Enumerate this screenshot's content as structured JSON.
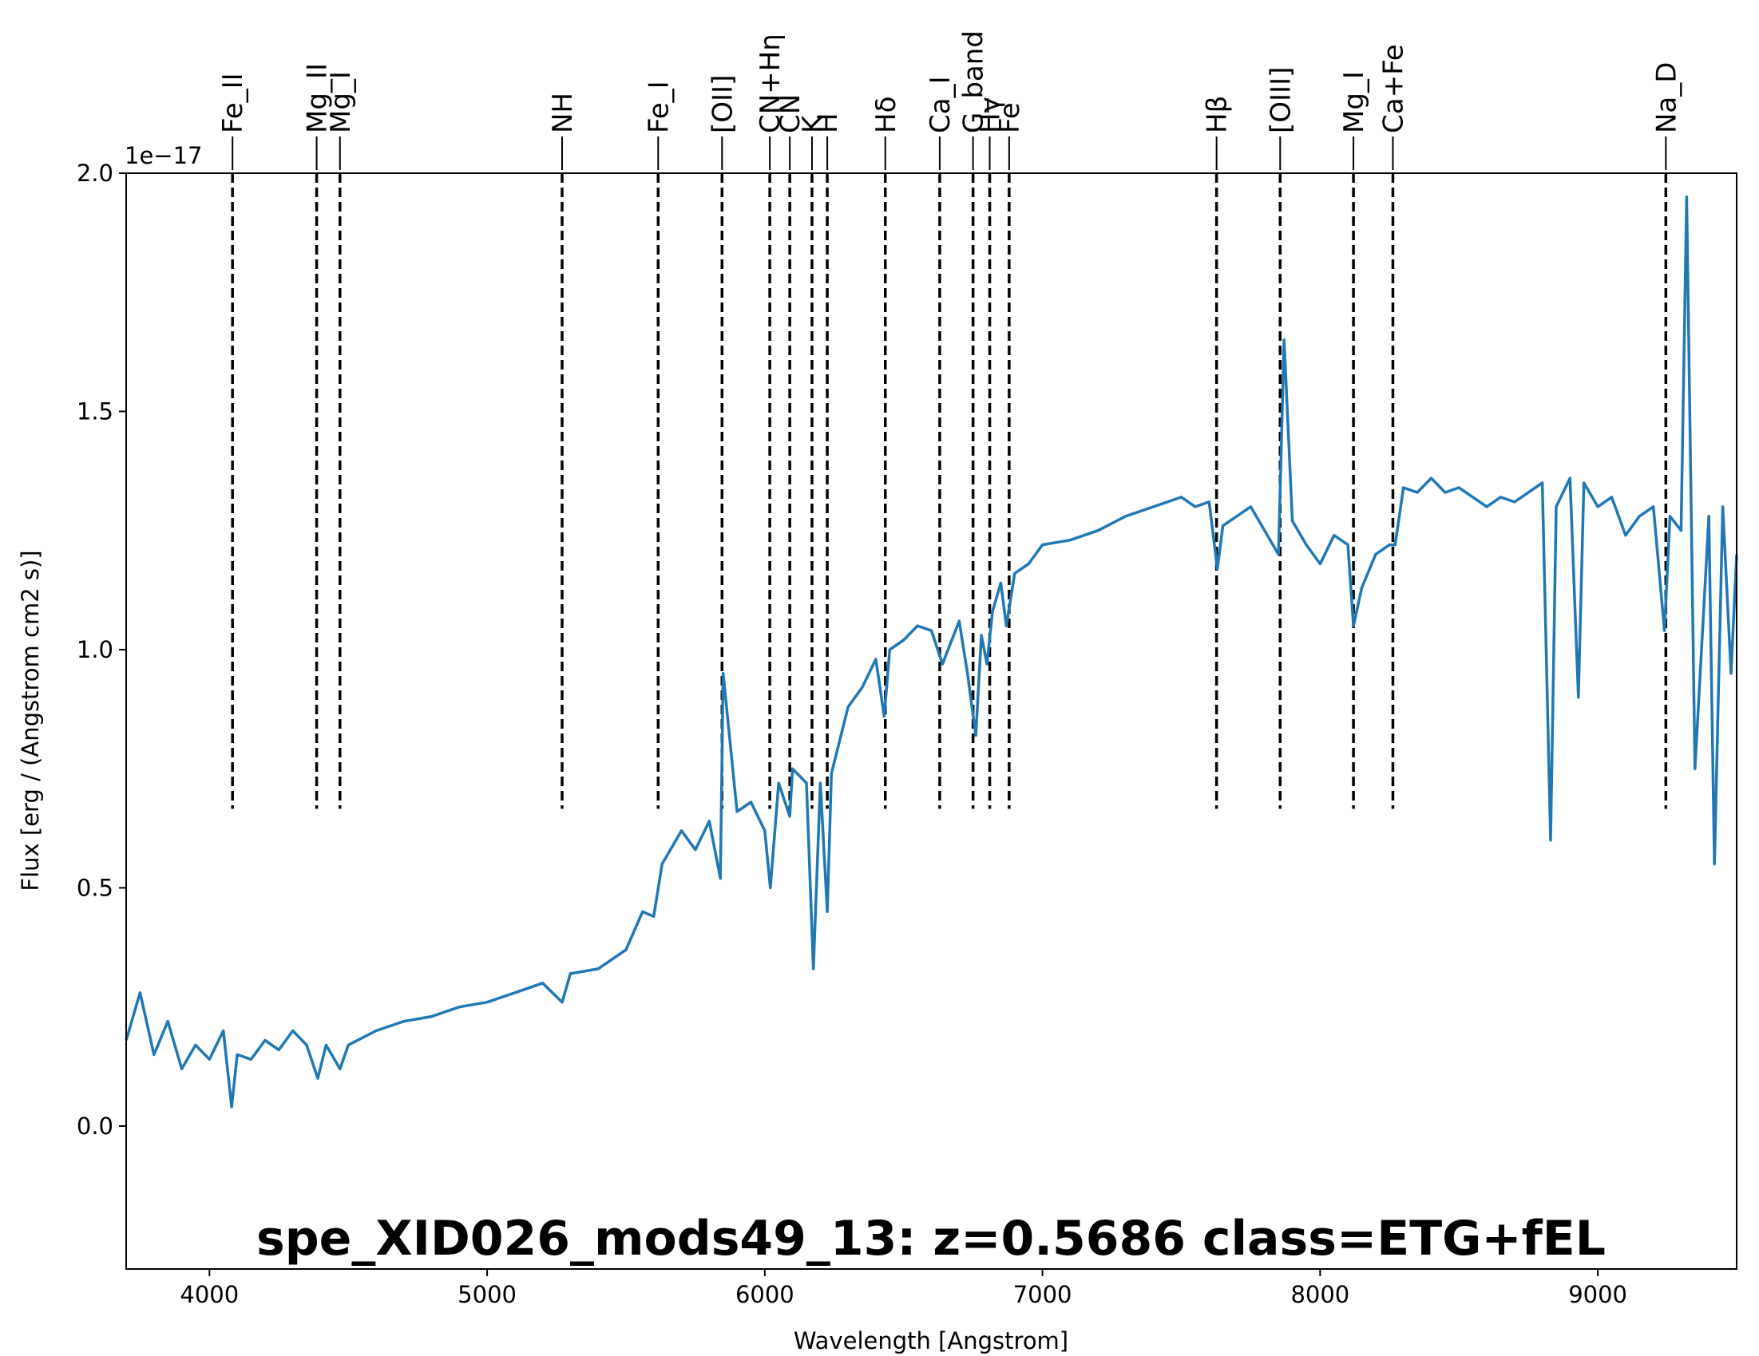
{
  "chart_data": {
    "type": "line",
    "xlabel": "Wavelength [Angstrom]",
    "ylabel": "Flux [erg / (Angstrom cm2 s)]",
    "y_offset_text": "1e−17",
    "xlim": [
      3700,
      9500
    ],
    "ylim": [
      -0.3,
      2.0
    ],
    "x_ticks": [
      4000,
      5000,
      6000,
      7000,
      8000,
      9000
    ],
    "x_tick_labels": [
      "4000",
      "5000",
      "6000",
      "7000",
      "8000",
      "9000"
    ],
    "y_ticks": [
      0.0,
      0.5,
      1.0,
      1.5,
      2.0
    ],
    "y_tick_labels": [
      "0.0",
      "0.5",
      "1.0",
      "1.5",
      "2.0"
    ],
    "grid": false,
    "annotation": "spe_XID026_mods49_13: z=0.5686 class=ETG+fEL",
    "annotation_color": "#FFA500",
    "series_color": "#1f77b4",
    "series": [
      {
        "x": [
          3700,
          3750,
          3800,
          3850,
          3900,
          3950,
          4000,
          4050,
          4080,
          4100,
          4150,
          4200,
          4250,
          4300,
          4350,
          4390,
          4420,
          4470,
          4500,
          4600,
          4700,
          4800,
          4900,
          5000,
          5100,
          5200,
          5270,
          5300,
          5400,
          5500,
          5560,
          5600,
          5630,
          5700,
          5750,
          5800,
          5840,
          5850,
          5900,
          5950,
          6000,
          6020,
          6050,
          6090,
          6100,
          6150,
          6175,
          6200,
          6225,
          6240,
          6300,
          6350,
          6400,
          6430,
          6450,
          6500,
          6550,
          6600,
          6640,
          6700,
          6730,
          6760,
          6780,
          6800,
          6820,
          6850,
          6870,
          6900,
          6950,
          7000,
          7100,
          7200,
          7300,
          7400,
          7500,
          7550,
          7600,
          7630,
          7650,
          7700,
          7750,
          7800,
          7850,
          7870,
          7900,
          7950,
          8000,
          8050,
          8100,
          8120,
          8150,
          8200,
          8250,
          8270,
          8300,
          8350,
          8400,
          8450,
          8500,
          8550,
          8600,
          8650,
          8700,
          8750,
          8800,
          8830,
          8850,
          8900,
          8930,
          8950,
          9000,
          9050,
          9100,
          9150,
          9200,
          9240,
          9260,
          9300,
          9320,
          9350,
          9400,
          9420,
          9450,
          9480,
          9500
        ],
        "y": [
          0.18,
          0.28,
          0.15,
          0.22,
          0.12,
          0.17,
          0.14,
          0.2,
          0.04,
          0.15,
          0.14,
          0.18,
          0.16,
          0.2,
          0.17,
          0.1,
          0.17,
          0.12,
          0.17,
          0.2,
          0.22,
          0.23,
          0.25,
          0.26,
          0.28,
          0.3,
          0.26,
          0.32,
          0.33,
          0.37,
          0.45,
          0.44,
          0.55,
          0.62,
          0.58,
          0.64,
          0.52,
          0.95,
          0.66,
          0.68,
          0.62,
          0.5,
          0.72,
          0.65,
          0.75,
          0.72,
          0.33,
          0.72,
          0.45,
          0.74,
          0.88,
          0.92,
          0.98,
          0.86,
          1.0,
          1.02,
          1.05,
          1.04,
          0.97,
          1.06,
          0.95,
          0.82,
          1.03,
          0.97,
          1.08,
          1.14,
          1.05,
          1.16,
          1.18,
          1.22,
          1.23,
          1.25,
          1.28,
          1.3,
          1.32,
          1.3,
          1.31,
          1.17,
          1.26,
          1.28,
          1.3,
          1.25,
          1.2,
          1.65,
          1.27,
          1.22,
          1.18,
          1.24,
          1.22,
          1.05,
          1.13,
          1.2,
          1.22,
          1.22,
          1.34,
          1.33,
          1.36,
          1.33,
          1.34,
          1.32,
          1.3,
          1.32,
          1.31,
          1.33,
          1.35,
          0.6,
          1.3,
          1.36,
          0.9,
          1.35,
          1.3,
          1.32,
          1.24,
          1.28,
          1.3,
          1.04,
          1.28,
          1.25,
          1.95,
          0.75,
          1.28,
          0.55,
          1.3,
          0.95,
          1.2
        ]
      }
    ],
    "spectral_lines": [
      {
        "label": "Fe_II",
        "x": 4083
      },
      {
        "label": "Mg_II",
        "x": 4386
      },
      {
        "label": "Mg_I",
        "x": 4470
      },
      {
        "label": "NH",
        "x": 5270
      },
      {
        "label": "Fe_I",
        "x": 5616
      },
      {
        "label": "[OII]",
        "x": 5846
      },
      {
        "label": "CN+Hη",
        "x": 6018
      },
      {
        "label": "CN",
        "x": 6090
      },
      {
        "label": "K",
        "x": 6170
      },
      {
        "label": "H",
        "x": 6225
      },
      {
        "label": "Hδ",
        "x": 6434
      },
      {
        "label": "Ca_I",
        "x": 6630
      },
      {
        "label": "G_band",
        "x": 6750
      },
      {
        "label": "Hγ",
        "x": 6810
      },
      {
        "label": "Fe",
        "x": 6880
      },
      {
        "label": "Hβ",
        "x": 7627
      },
      {
        "label": "[OIII]",
        "x": 7856
      },
      {
        "label": "Mg_I",
        "x": 8120
      },
      {
        "label": "Ca+Fe",
        "x": 8262
      },
      {
        "label": "Na_D",
        "x": 9245
      }
    ]
  }
}
